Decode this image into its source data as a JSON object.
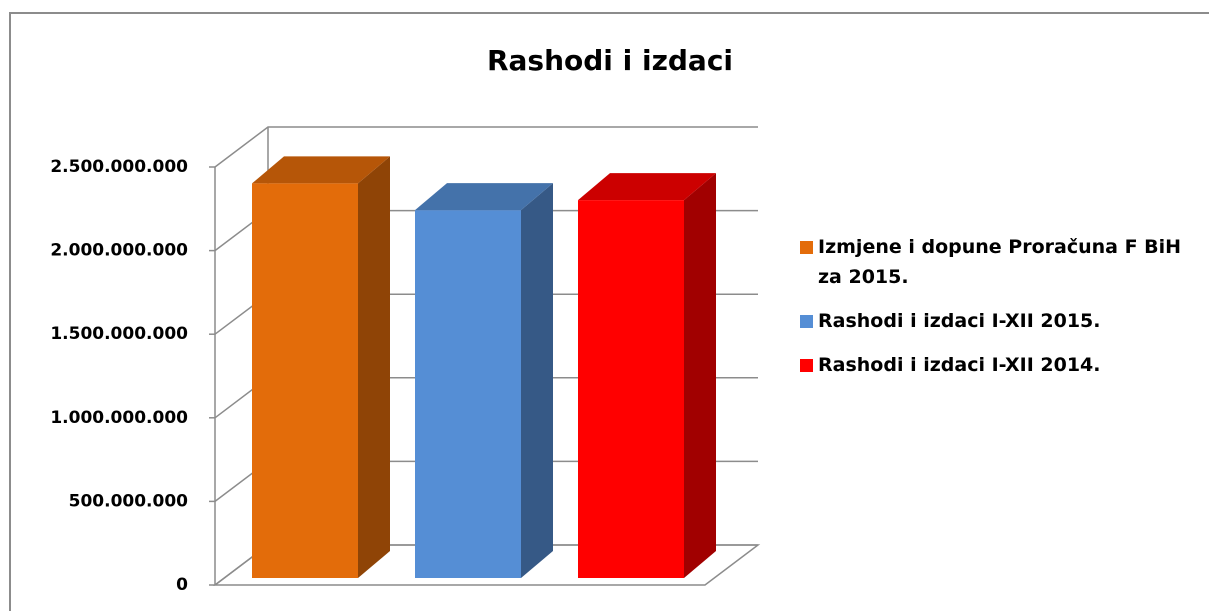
{
  "chart_data": {
    "type": "bar3d",
    "title": "Rashodi i izdaci",
    "categories": [
      null
    ],
    "series": [
      {
        "name": "Izmjene i dopune Proračuna F BiH za 2015.",
        "color": "#e36c0a",
        "values": [
          2360000000
        ]
      },
      {
        "name": "Rashodi i izdaci I-XII 2015.",
        "color": "#558ed5",
        "values": [
          2200000000
        ]
      },
      {
        "name": "Rashodi i izdaci I-XII 2014.",
        "color": "#ff0000",
        "values": [
          2260000000
        ]
      }
    ],
    "ylim": [
      0,
      2500000000
    ],
    "yticks": [
      0,
      {
        "value": 500000000,
        "label": "500.000.000"
      },
      {
        "value": 1000000000,
        "label": "1.000.000.000"
      },
      {
        "value": 1500000000,
        "label": "1.500.000.000"
      },
      {
        "value": 2000000000,
        "label": "2.000.000.000"
      },
      {
        "value": 2500000000,
        "label": "2.500.000.000"
      }
    ],
    "grid": true,
    "legend": "right"
  }
}
